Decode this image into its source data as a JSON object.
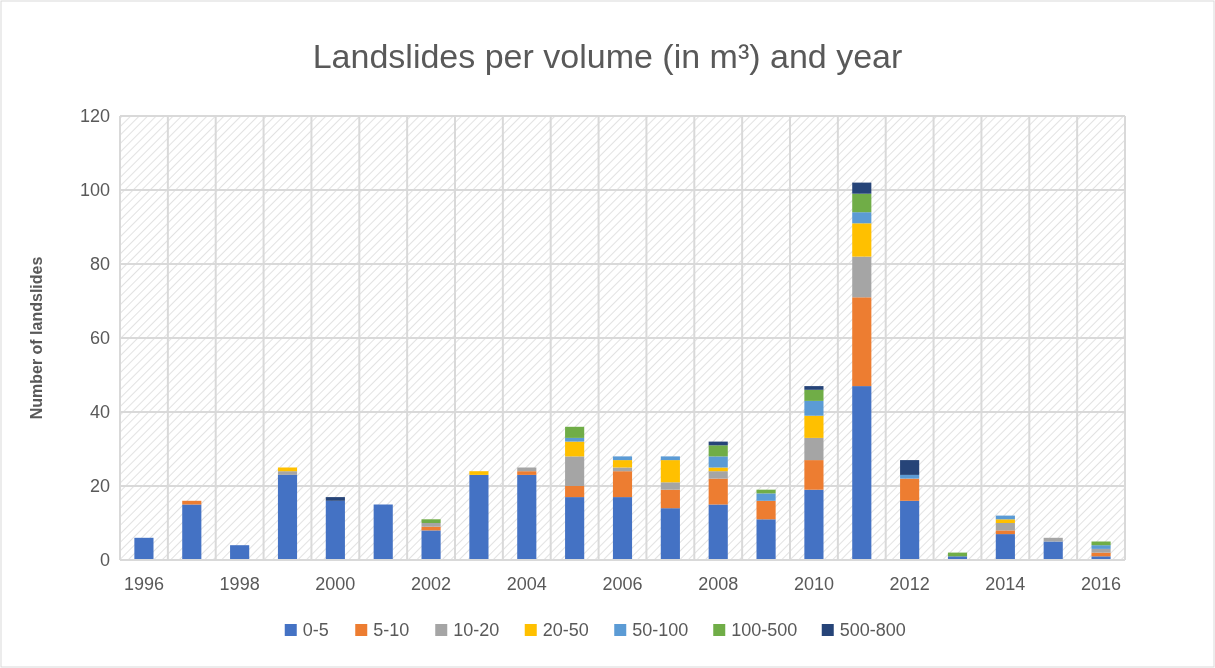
{
  "chart_data": {
    "type": "bar",
    "title": "Landslides per volume (in m³) and year",
    "ylabel": "Number of landslides",
    "categories": [
      "1996",
      null,
      "1998",
      null,
      "2000",
      null,
      "2002",
      null,
      "2004",
      null,
      "2006",
      null,
      "2008",
      null,
      "2010",
      null,
      "2012",
      null,
      "2014",
      null,
      "2016"
    ],
    "stacked": true,
    "ylim": [
      0,
      120
    ],
    "yticks": [
      0,
      20,
      40,
      60,
      80,
      100,
      120
    ],
    "grid": true,
    "legend": "bottom",
    "series": [
      {
        "name": "0-5",
        "color": "#4472c4",
        "values": [
          6,
          15,
          4,
          23,
          16,
          15,
          8,
          23,
          23,
          17,
          17,
          14,
          15,
          11,
          19,
          47,
          16,
          1,
          7,
          5,
          1
        ]
      },
      {
        "name": "5-10",
        "color": "#ed7d31",
        "values": [
          0,
          1,
          0,
          0,
          0,
          0,
          1,
          0,
          1,
          3,
          7,
          5,
          7,
          5,
          8,
          24,
          6,
          0,
          1,
          0,
          1
        ]
      },
      {
        "name": "10-20",
        "color": "#a5a5a5",
        "values": [
          0,
          0,
          0,
          1,
          0,
          0,
          1,
          0,
          1,
          8,
          1,
          2,
          2,
          0,
          6,
          11,
          0,
          0,
          2,
          1,
          1
        ]
      },
      {
        "name": "20-50",
        "color": "#ffc000",
        "values": [
          0,
          0,
          0,
          1,
          0,
          0,
          0,
          1,
          0,
          4,
          2,
          6,
          1,
          0,
          6,
          9,
          0,
          0,
          1,
          0,
          0
        ]
      },
      {
        "name": "50-100",
        "color": "#5b9bd5",
        "values": [
          0,
          0,
          0,
          0,
          0,
          0,
          0,
          0,
          0,
          1,
          1,
          1,
          3,
          2,
          4,
          3,
          1,
          0,
          1,
          0,
          1
        ]
      },
      {
        "name": "100-500",
        "color": "#70ad47",
        "values": [
          0,
          0,
          0,
          0,
          0,
          0,
          1,
          0,
          0,
          3,
          0,
          0,
          3,
          1,
          3,
          5,
          0,
          1,
          0,
          0,
          1
        ]
      },
      {
        "name": "500-800",
        "color": "#264478",
        "values": [
          0,
          0,
          0,
          0,
          1,
          0,
          0,
          0,
          0,
          0,
          0,
          0,
          1,
          0,
          1,
          3,
          4,
          0,
          0,
          0,
          0
        ]
      }
    ]
  }
}
